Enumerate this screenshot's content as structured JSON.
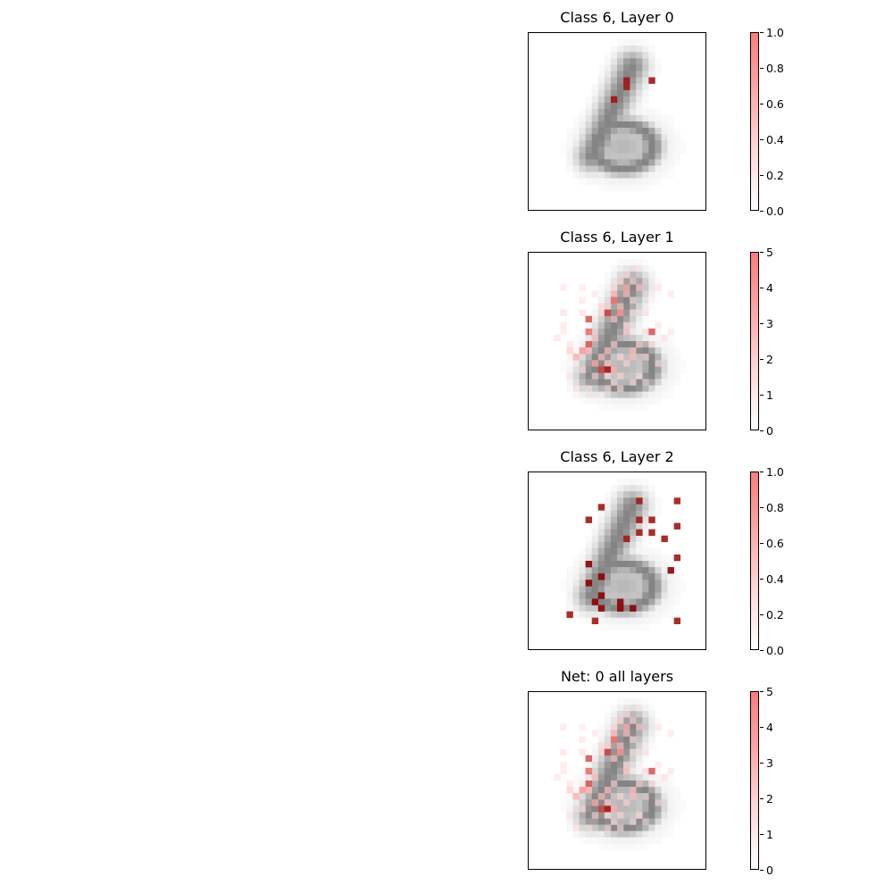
{
  "chart_data": [
    {
      "type": "heatmap",
      "title": "Class 6, Layer 0",
      "clim": [
        0,
        1
      ],
      "colorbar_ticks": [
        "0.0",
        "0.2",
        "0.4",
        "0.6",
        "0.8",
        "1.0"
      ],
      "cells": [
        [
          15,
          7,
          0.9
        ],
        [
          19,
          7,
          0.9
        ],
        [
          15,
          8,
          0.9
        ],
        [
          13,
          10,
          0.9
        ]
      ]
    },
    {
      "type": "heatmap",
      "title": "Class 6, Layer 1",
      "clim": [
        0,
        5
      ],
      "colorbar_ticks": [
        "0",
        "1",
        "2",
        "3",
        "4",
        "5"
      ],
      "cells": [
        [
          17,
          2,
          0.3
        ],
        [
          15,
          3,
          0.6
        ],
        [
          14,
          4,
          0.7
        ],
        [
          16,
          4,
          0.5
        ],
        [
          5,
          5,
          0.3
        ],
        [
          8,
          5,
          0.2
        ],
        [
          13,
          5,
          0.5
        ],
        [
          15,
          5,
          1.5
        ],
        [
          17,
          5,
          1.0
        ],
        [
          20,
          5,
          0.3
        ],
        [
          10,
          6,
          0.3
        ],
        [
          13,
          6,
          1.2
        ],
        [
          15,
          6,
          1.0
        ],
        [
          22,
          6,
          0.3
        ],
        [
          8,
          7,
          0.3
        ],
        [
          13,
          7,
          2.5
        ],
        [
          16,
          7,
          0.4
        ],
        [
          11,
          8,
          0.5
        ],
        [
          12,
          8,
          0.6
        ],
        [
          14,
          8,
          1.0
        ],
        [
          5,
          9,
          0.4
        ],
        [
          8,
          9,
          0.4
        ],
        [
          11,
          9,
          0.6
        ],
        [
          12,
          9,
          3.5
        ],
        [
          14,
          9,
          2.0
        ],
        [
          16,
          9,
          0.4
        ],
        [
          18,
          9,
          0.4
        ],
        [
          9,
          10,
          3.0
        ],
        [
          13,
          10,
          1.0
        ],
        [
          5,
          11,
          0.3
        ],
        [
          15,
          11,
          0.5
        ],
        [
          20,
          11,
          0.3
        ],
        [
          5,
          12,
          0.2
        ],
        [
          9,
          12,
          2.5
        ],
        [
          15,
          12,
          1.0
        ],
        [
          18,
          12,
          0.5
        ],
        [
          19,
          12,
          3.0
        ],
        [
          22,
          12,
          0.3
        ],
        [
          4,
          13,
          0.3
        ],
        [
          10,
          13,
          1.0
        ],
        [
          21,
          13,
          0.4
        ],
        [
          6,
          14,
          0.3
        ],
        [
          9,
          14,
          3.0
        ],
        [
          13,
          14,
          0.8
        ],
        [
          17,
          14,
          0.5
        ],
        [
          19,
          14,
          0.5
        ],
        [
          6,
          15,
          0.8
        ],
        [
          8,
          15,
          2.0
        ],
        [
          9,
          15,
          1.2
        ],
        [
          12,
          15,
          1.2
        ],
        [
          16,
          15,
          1.0
        ],
        [
          7,
          16,
          1.5
        ],
        [
          11,
          16,
          1.0
        ],
        [
          14,
          16,
          0.5
        ],
        [
          16,
          16,
          1.2
        ],
        [
          18,
          16,
          0.4
        ],
        [
          10,
          17,
          1.5
        ],
        [
          12,
          17,
          1.0
        ],
        [
          15,
          17,
          0.6
        ],
        [
          20,
          17,
          0.4
        ],
        [
          8,
          18,
          0.5
        ],
        [
          11,
          18,
          3.5
        ],
        [
          12,
          18,
          4.5
        ],
        [
          13,
          18,
          1.5
        ],
        [
          6,
          19,
          0.3
        ],
        [
          10,
          19,
          0.5
        ],
        [
          12,
          19,
          0.4
        ],
        [
          14,
          19,
          0.5
        ],
        [
          17,
          19,
          0.3
        ],
        [
          13,
          20,
          0.3
        ],
        [
          16,
          20,
          0.3
        ],
        [
          18,
          20,
          0.3
        ],
        [
          7,
          21,
          0.3
        ],
        [
          9,
          21,
          0.3
        ],
        [
          12,
          21,
          0.3
        ],
        [
          14,
          21,
          0.3
        ]
      ]
    },
    {
      "type": "heatmap",
      "title": "Class 6, Layer 2",
      "clim": [
        0,
        1
      ],
      "colorbar_ticks": [
        "0.0",
        "0.2",
        "0.4",
        "0.6",
        "0.8",
        "1.0"
      ],
      "cells": [
        [
          17,
          4,
          0.9
        ],
        [
          23,
          4,
          0.9
        ],
        [
          11,
          5,
          0.9
        ],
        [
          9,
          7,
          0.9
        ],
        [
          17,
          7,
          0.9
        ],
        [
          19,
          7,
          0.9
        ],
        [
          23,
          8,
          0.9
        ],
        [
          17,
          9,
          0.9
        ],
        [
          19,
          9,
          0.9
        ],
        [
          15,
          10,
          0.9
        ],
        [
          21,
          10,
          0.9
        ],
        [
          9,
          14,
          1.0
        ],
        [
          23,
          13,
          0.9
        ],
        [
          11,
          16,
          1.0
        ],
        [
          22,
          15,
          1.0
        ],
        [
          9,
          17,
          1.0
        ],
        [
          11,
          19,
          1.0
        ],
        [
          10,
          20,
          1.0
        ],
        [
          14,
          20,
          1.0
        ],
        [
          11,
          21,
          1.0
        ],
        [
          14,
          21,
          1.0
        ],
        [
          16,
          21,
          1.0
        ],
        [
          6,
          22,
          0.9
        ],
        [
          10,
          23,
          0.9
        ],
        [
          23,
          23,
          0.9
        ]
      ]
    },
    {
      "type": "heatmap",
      "title": "Net: 0 all layers",
      "clim": [
        0,
        5
      ],
      "colorbar_ticks": [
        "0",
        "1",
        "2",
        "3",
        "4",
        "5"
      ],
      "cells": [
        [
          17,
          2,
          0.3
        ],
        [
          15,
          3,
          0.6
        ],
        [
          14,
          4,
          0.7
        ],
        [
          16,
          4,
          0.5
        ],
        [
          5,
          5,
          0.3
        ],
        [
          8,
          5,
          0.2
        ],
        [
          13,
          5,
          0.5
        ],
        [
          15,
          5,
          1.5
        ],
        [
          17,
          5,
          1.0
        ],
        [
          20,
          5,
          0.3
        ],
        [
          10,
          6,
          0.3
        ],
        [
          13,
          6,
          1.2
        ],
        [
          15,
          6,
          1.0
        ],
        [
          22,
          6,
          0.3
        ],
        [
          8,
          7,
          0.3
        ],
        [
          13,
          7,
          2.5
        ],
        [
          16,
          7,
          0.4
        ],
        [
          11,
          8,
          0.5
        ],
        [
          12,
          8,
          0.6
        ],
        [
          14,
          8,
          1.0
        ],
        [
          5,
          9,
          0.4
        ],
        [
          8,
          9,
          0.4
        ],
        [
          11,
          9,
          0.6
        ],
        [
          12,
          9,
          3.5
        ],
        [
          14,
          9,
          2.0
        ],
        [
          16,
          9,
          0.4
        ],
        [
          18,
          9,
          0.4
        ],
        [
          9,
          10,
          3.0
        ],
        [
          13,
          10,
          1.0
        ],
        [
          5,
          11,
          0.3
        ],
        [
          15,
          11,
          0.5
        ],
        [
          20,
          11,
          0.3
        ],
        [
          5,
          12,
          0.2
        ],
        [
          9,
          12,
          2.5
        ],
        [
          15,
          12,
          1.0
        ],
        [
          18,
          12,
          0.5
        ],
        [
          19,
          12,
          3.0
        ],
        [
          22,
          12,
          0.3
        ],
        [
          4,
          13,
          0.3
        ],
        [
          10,
          13,
          1.0
        ],
        [
          21,
          13,
          0.4
        ],
        [
          6,
          14,
          0.3
        ],
        [
          9,
          14,
          3.0
        ],
        [
          13,
          14,
          0.8
        ],
        [
          17,
          14,
          0.5
        ],
        [
          19,
          14,
          0.5
        ],
        [
          6,
          15,
          0.8
        ],
        [
          8,
          15,
          2.0
        ],
        [
          9,
          15,
          1.2
        ],
        [
          12,
          15,
          1.2
        ],
        [
          16,
          15,
          1.0
        ],
        [
          7,
          16,
          1.5
        ],
        [
          11,
          16,
          1.0
        ],
        [
          14,
          16,
          0.5
        ],
        [
          16,
          16,
          1.2
        ],
        [
          18,
          16,
          0.4
        ],
        [
          10,
          17,
          1.5
        ],
        [
          12,
          17,
          1.0
        ],
        [
          15,
          17,
          0.6
        ],
        [
          20,
          17,
          0.4
        ],
        [
          8,
          18,
          0.5
        ],
        [
          11,
          18,
          3.5
        ],
        [
          12,
          18,
          4.5
        ],
        [
          13,
          18,
          1.5
        ],
        [
          6,
          19,
          0.3
        ],
        [
          10,
          19,
          0.5
        ],
        [
          12,
          19,
          0.4
        ],
        [
          14,
          19,
          0.5
        ],
        [
          17,
          19,
          0.3
        ],
        [
          13,
          20,
          0.3
        ],
        [
          16,
          20,
          0.3
        ],
        [
          18,
          20,
          0.3
        ],
        [
          7,
          21,
          0.3
        ],
        [
          9,
          21,
          0.3
        ],
        [
          12,
          21,
          0.3
        ],
        [
          14,
          21,
          0.3
        ]
      ]
    }
  ],
  "colors": {
    "overlay_low": "#ffffff",
    "overlay_high": "#ff7b7b",
    "overlay_dark": "#8b0000",
    "background_digit": "#888888"
  }
}
